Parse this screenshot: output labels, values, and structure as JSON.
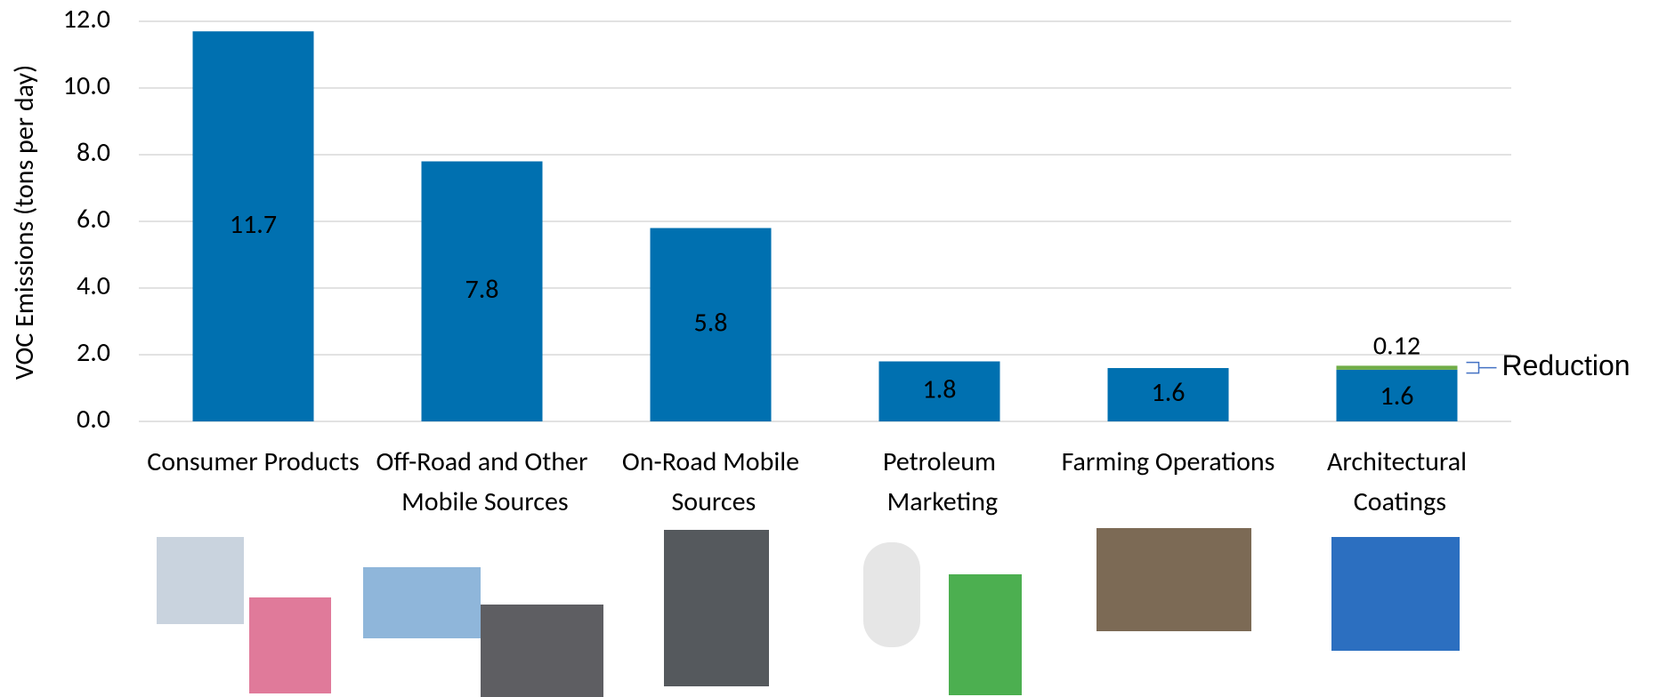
{
  "chart_data": {
    "type": "stacked_bar",
    "y_label": "VOC Emissions (tons per day)",
    "categories": [
      "Consumer Products",
      "Off-Road and Other Mobile Sources",
      "On-Road Mobile Sources",
      "Petroleum Marketing",
      "Farming Operations",
      "Architectural Coatings"
    ],
    "series": [
      {
        "color": "#0070b0",
        "values": [
          11.7,
          7.8,
          5.8,
          1.8,
          1.6,
          1.55
        ],
        "value_labels": [
          "11.7",
          "7.8",
          "5.8",
          "1.8",
          "1.6",
          "1.6"
        ]
      },
      {
        "name": "Reduction",
        "color": "#70ad47",
        "values": [
          null,
          null,
          null,
          null,
          null,
          0.12
        ]
      }
    ],
    "ylim": [
      0,
      12
    ],
    "yticks": [
      {
        "value": 0,
        "label": "0.0"
      },
      {
        "value": 2,
        "label": "2.0"
      },
      {
        "value": 4,
        "label": "4.0"
      },
      {
        "value": 6,
        "label": "6.0"
      },
      {
        "value": 8,
        "label": "8.0"
      },
      {
        "value": 10,
        "label": "10.0"
      },
      {
        "value": 12,
        "label": "12.0"
      }
    ],
    "grid": true
  }
}
